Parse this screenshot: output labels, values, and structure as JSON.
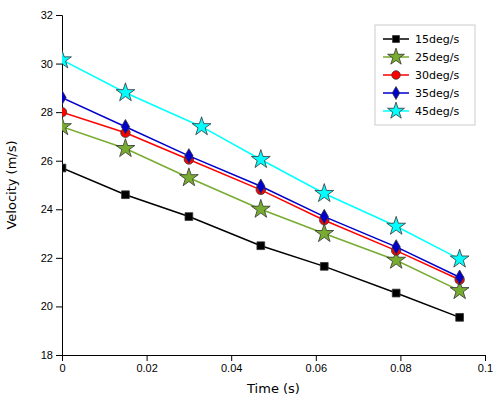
{
  "chart_data": {
    "type": "line",
    "xlabel": "Time (s)",
    "ylabel": "Velocity (m/s)",
    "xlim": [
      0,
      0.1
    ],
    "ylim": [
      18,
      32
    ],
    "xticks": [
      0,
      0.02,
      0.04,
      0.06,
      0.08,
      0.1
    ],
    "yticks": [
      18,
      20,
      22,
      24,
      26,
      28,
      30,
      32
    ],
    "grid": false,
    "legend": "upper right",
    "series": [
      {
        "name": "15deg/s",
        "color": "black",
        "marker": "square",
        "x": [
          0,
          0.015,
          0.03,
          0.047,
          0.062,
          0.079,
          0.094
        ],
        "values": [
          25.7,
          24.6,
          23.7,
          22.5,
          21.65,
          20.55,
          19.55
        ]
      },
      {
        "name": "25deg/s",
        "color": "#77ac30",
        "marker": "star",
        "x": [
          0,
          0.015,
          0.03,
          0.047,
          0.062,
          0.079,
          0.094
        ],
        "values": [
          27.4,
          26.5,
          25.3,
          24.0,
          23.0,
          21.9,
          20.65
        ]
      },
      {
        "name": "30deg/s",
        "color": "red",
        "marker": "circle",
        "x": [
          0,
          0.015,
          0.03,
          0.047,
          0.062,
          0.079,
          0.094
        ],
        "values": [
          28.0,
          27.15,
          26.05,
          24.8,
          23.55,
          22.3,
          21.1
        ]
      },
      {
        "name": "35deg/s",
        "color": "#0000cc",
        "marker": "diamond",
        "x": [
          0,
          0.015,
          0.03,
          0.047,
          0.062,
          0.079,
          0.094
        ],
        "values": [
          28.6,
          27.4,
          26.2,
          24.95,
          23.7,
          22.45,
          21.2
        ]
      },
      {
        "name": "45deg/s",
        "color": "cyan",
        "marker": "star",
        "x": [
          0,
          0.015,
          0.033,
          0.047,
          0.062,
          0.079,
          0.094
        ],
        "values": [
          30.15,
          28.8,
          27.4,
          26.05,
          24.65,
          23.3,
          21.95
        ]
      }
    ]
  }
}
